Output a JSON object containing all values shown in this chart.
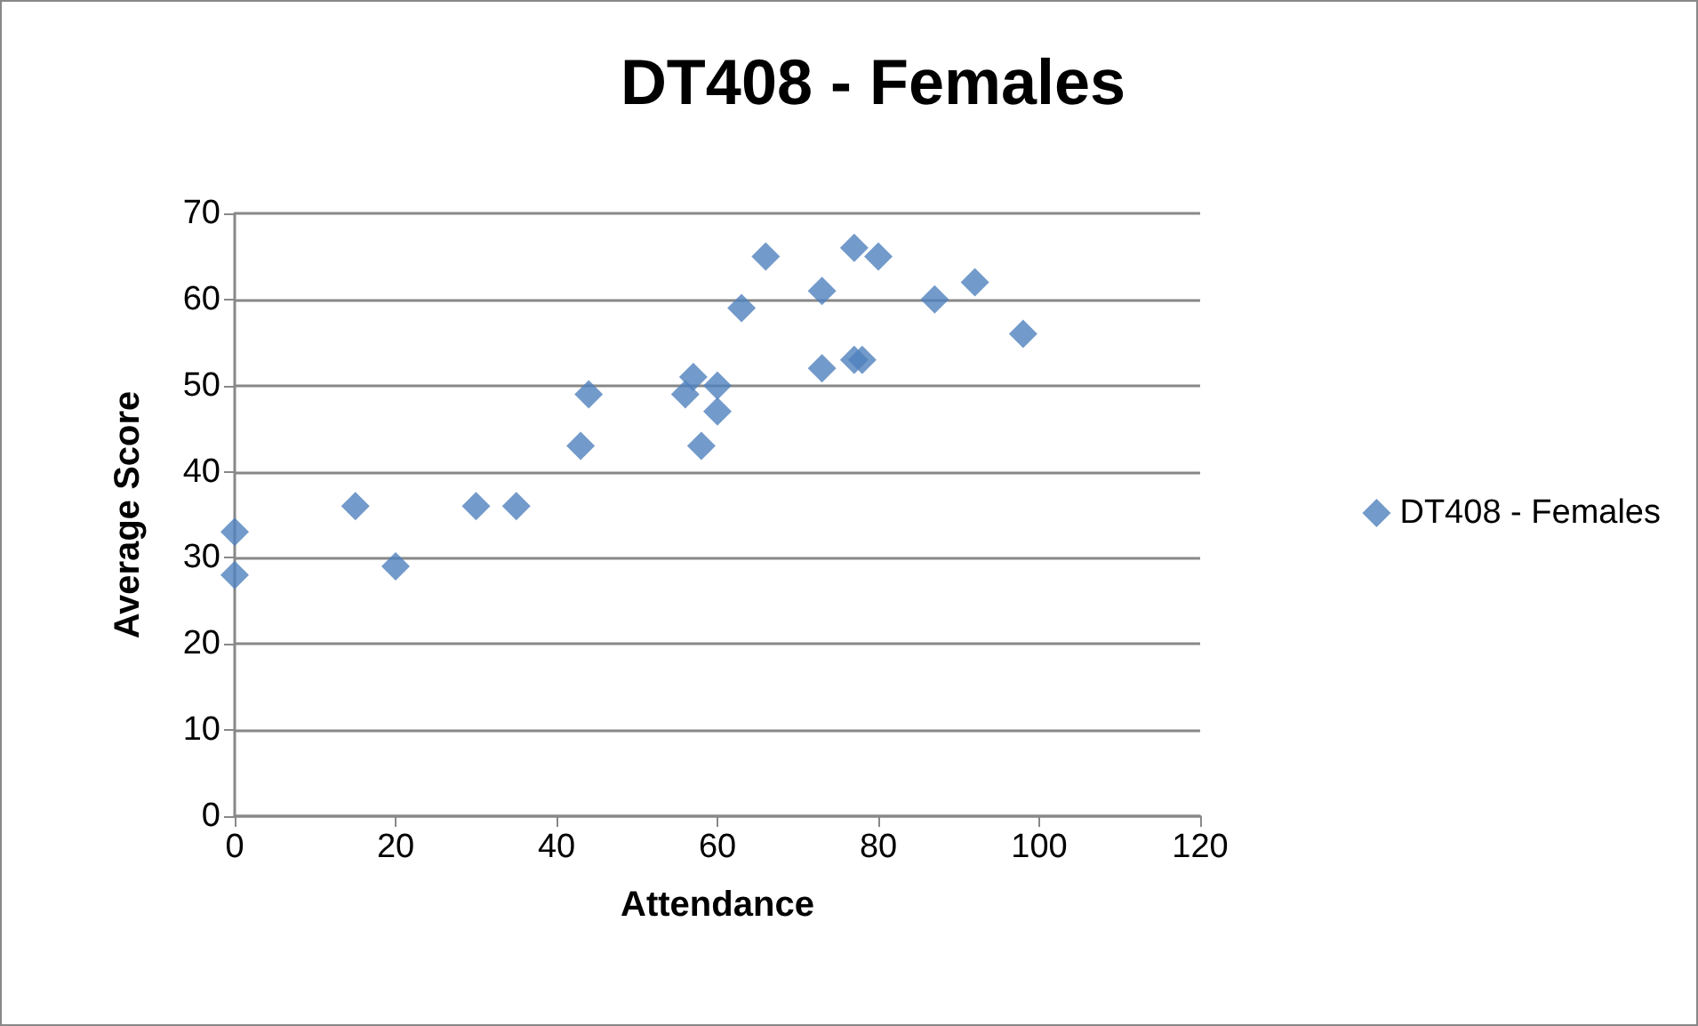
{
  "chart_data": {
    "type": "scatter",
    "title": "DT408 - Females",
    "xlabel": "Attendance",
    "ylabel": "Average Score",
    "series": [
      {
        "name": "DT408 - Females",
        "color": "#4f81bd",
        "x": [
          0,
          0,
          15,
          20,
          30,
          35,
          43,
          44,
          56,
          57,
          58,
          60,
          60,
          63,
          66,
          73,
          73,
          77,
          77,
          78,
          80,
          87,
          92,
          98
        ],
        "values": [
          33,
          28,
          36,
          29,
          36,
          36,
          43,
          49,
          49,
          51,
          43,
          50,
          47,
          59,
          65,
          61,
          52,
          66,
          53,
          53,
          65,
          60,
          62,
          56
        ]
      }
    ],
    "xlim": [
      0,
      120
    ],
    "xticks": [
      0,
      20,
      40,
      60,
      80,
      100,
      120
    ],
    "ylim": [
      0,
      70
    ],
    "yticks": [
      0,
      10,
      20,
      30,
      40,
      50,
      60,
      70
    ],
    "grid": "y",
    "legend": "right",
    "marker": "diamond"
  }
}
